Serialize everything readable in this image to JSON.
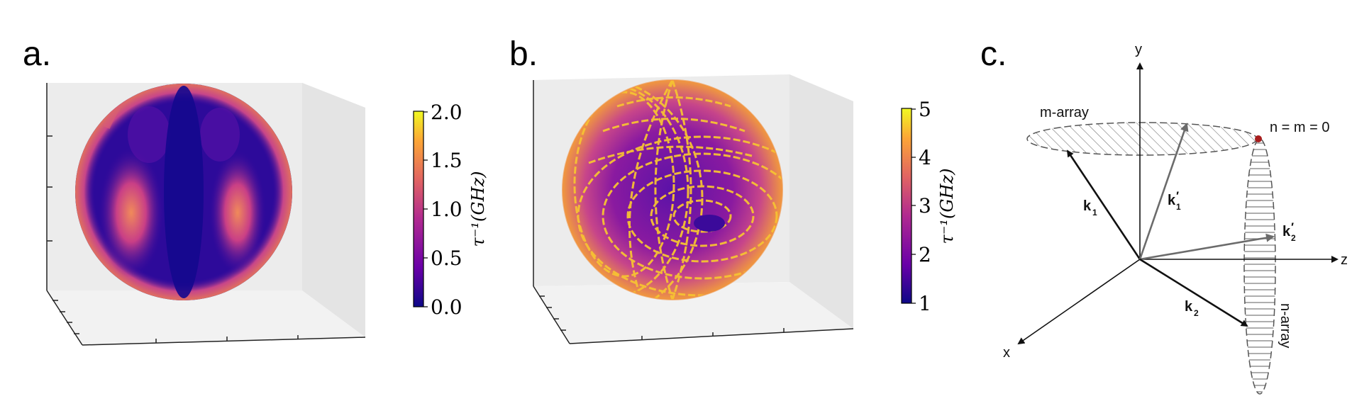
{
  "panels": {
    "a": {
      "label": "a.",
      "colorbar": {
        "label": "τ⁻¹(GHz)",
        "ticks": [
          "0.0",
          "0.5",
          "1.0",
          "1.5",
          "2.0"
        ],
        "range": [
          0.0,
          2.0
        ]
      }
    },
    "b": {
      "label": "b.",
      "colorbar": {
        "label": "τ⁻¹(GHz)",
        "ticks": [
          "1",
          "2",
          "3",
          "4",
          "5"
        ],
        "range": [
          1,
          5
        ]
      }
    },
    "c": {
      "label": "c.",
      "axes": {
        "x": "x",
        "y": "y",
        "z": "z"
      },
      "m_array": "m-array",
      "n_array": "n-array",
      "origin_label": "n = m = 0",
      "vectors": {
        "k1": {
          "main": "k",
          "sub": "1",
          "prime": ""
        },
        "k1p": {
          "main": "k",
          "sub": "1",
          "prime": "′"
        },
        "k2": {
          "main": "k",
          "sub": "2",
          "prime": ""
        },
        "k2p": {
          "main": "k",
          "sub": "2",
          "prime": "′"
        }
      }
    }
  },
  "colormap": [
    "#0d0887",
    "#6a00a8",
    "#b12a90",
    "#e16462",
    "#fca636",
    "#f0f921"
  ]
}
